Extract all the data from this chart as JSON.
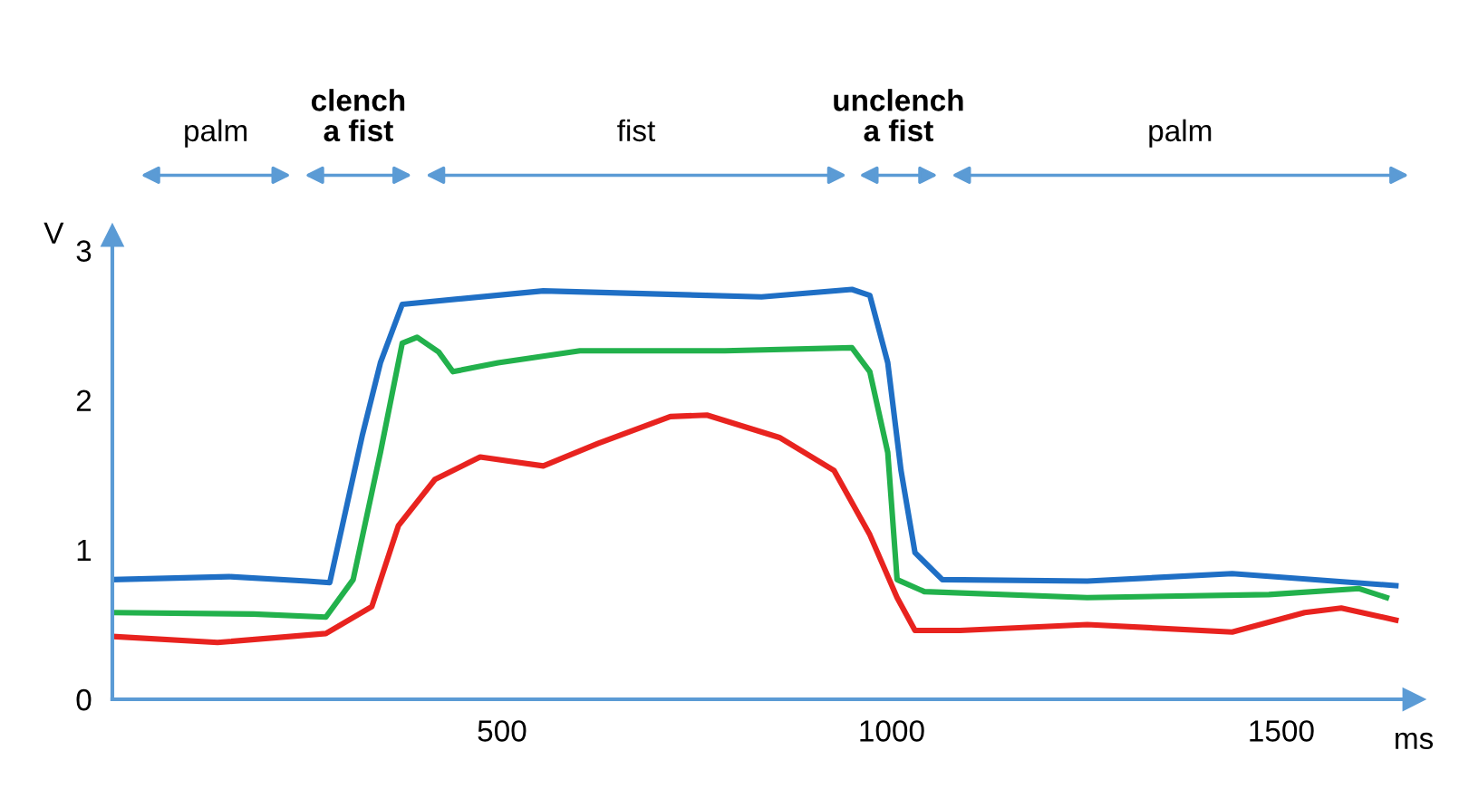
{
  "chart_data": {
    "type": "line",
    "xlabel": "ms",
    "ylabel": "V",
    "xlim": [
      0,
      1670
    ],
    "ylim": [
      0,
      3.1
    ],
    "xticks": [
      500,
      1000,
      1500
    ],
    "yticks": [
      0,
      1,
      2,
      3
    ],
    "grid": false,
    "legend": false,
    "annotations": [
      "palm",
      "clench\na fist",
      "fist",
      "unclench\na fist",
      "palm"
    ],
    "series": [
      {
        "color": "#1f6fc5",
        "x": [
          0,
          150,
          250,
          279,
          321,
          344,
          372,
          553,
          833,
          949,
          972,
          995,
          1012,
          1030,
          1065,
          1251,
          1437,
          1647
        ],
        "values": [
          0.8,
          0.82,
          0.79,
          0.78,
          1.77,
          2.25,
          2.64,
          2.73,
          2.69,
          2.74,
          2.7,
          2.25,
          1.53,
          0.98,
          0.8,
          0.79,
          0.84,
          0.76
        ]
      },
      {
        "color": "#22b14c",
        "x": [
          0,
          181,
          274,
          309,
          344,
          372,
          391,
          419,
          437,
          495,
          600,
          786,
          949,
          972,
          995,
          1007,
          1042,
          1251,
          1484,
          1600,
          1635
        ],
        "values": [
          0.58,
          0.57,
          0.55,
          0.8,
          1.65,
          2.38,
          2.42,
          2.32,
          2.19,
          2.25,
          2.33,
          2.33,
          2.35,
          2.19,
          1.65,
          0.8,
          0.72,
          0.68,
          0.7,
          0.74,
          0.68
        ]
      },
      {
        "color": "#e8231f",
        "x": [
          0,
          135,
          274,
          333,
          367,
          414,
          472,
          553,
          623,
          716,
          763,
          856,
          926,
          972,
          1007,
          1030,
          1088,
          1251,
          1437,
          1530,
          1577,
          1647
        ],
        "values": [
          0.42,
          0.38,
          0.44,
          0.62,
          1.16,
          1.47,
          1.62,
          1.56,
          1.71,
          1.89,
          1.9,
          1.75,
          1.53,
          1.1,
          0.68,
          0.46,
          0.46,
          0.5,
          0.45,
          0.58,
          0.61,
          0.53
        ]
      }
    ]
  }
}
